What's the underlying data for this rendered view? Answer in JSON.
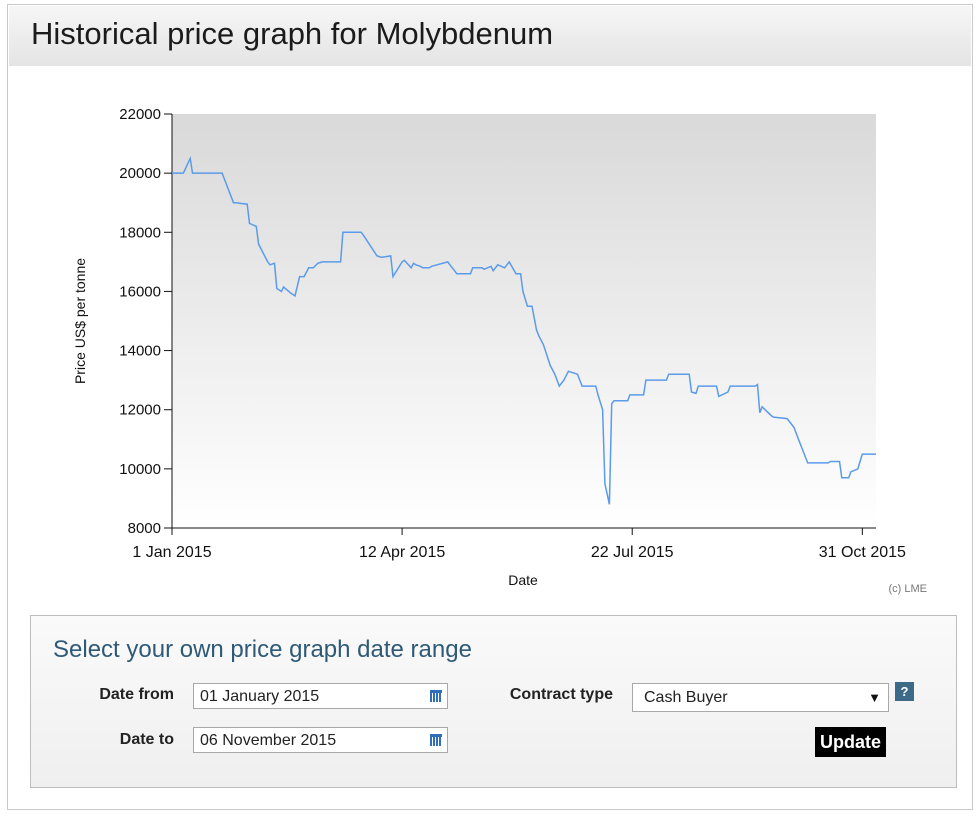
{
  "page": {
    "title": "Historical price graph for Molybdenum"
  },
  "chart_data": {
    "type": "line",
    "title": "",
    "xlabel": "Date",
    "ylabel": "Price US$ per tonne",
    "credit": "(c) LME",
    "x_ticks": [
      "1 Jan 2015",
      "12 Apr 2015",
      "22 Jul 2015",
      "31 Oct 2015"
    ],
    "xlim": [
      "2015-01-01",
      "2015-11-06"
    ],
    "y_ticks": [
      8000,
      10000,
      12000,
      14000,
      16000,
      18000,
      20000,
      22000
    ],
    "ylim": [
      8000,
      22000
    ],
    "grid": false,
    "line_color": "#5b9bea",
    "series": [
      {
        "x": [
          "2015-01-01",
          "2015-01-06",
          "2015-01-09",
          "2015-01-10",
          "2015-01-23",
          "2015-01-24",
          "2015-01-28",
          "2015-01-29",
          "2015-02-03",
          "2015-02-04",
          "2015-02-07",
          "2015-02-08",
          "2015-02-12",
          "2015-02-13",
          "2015-02-15",
          "2015-02-16",
          "2015-02-18",
          "2015-02-19",
          "2015-02-22",
          "2015-02-24",
          "2015-02-26",
          "2015-02-28",
          "2015-03-02",
          "2015-03-04",
          "2015-03-06",
          "2015-03-08",
          "2015-03-16",
          "2015-03-17",
          "2015-03-25",
          "2015-03-26",
          "2015-04-01",
          "2015-04-03",
          "2015-04-07",
          "2015-04-08",
          "2015-04-12",
          "2015-04-13",
          "2015-04-16",
          "2015-04-17",
          "2015-04-18",
          "2015-04-20",
          "2015-04-21",
          "2015-04-24",
          "2015-04-25",
          "2015-05-02",
          "2015-05-05",
          "2015-05-06",
          "2015-05-12",
          "2015-05-13",
          "2015-05-17",
          "2015-05-18",
          "2015-05-21",
          "2015-05-22",
          "2015-05-24",
          "2015-05-27",
          "2015-05-29",
          "2015-06-01",
          "2015-06-03",
          "2015-06-04",
          "2015-06-06",
          "2015-06-08",
          "2015-06-10",
          "2015-06-11",
          "2015-06-13",
          "2015-06-16",
          "2015-06-18",
          "2015-06-20",
          "2015-06-22",
          "2015-06-24",
          "2015-06-28",
          "2015-06-30",
          "2015-07-06",
          "2015-07-07",
          "2015-07-09",
          "2015-07-10",
          "2015-07-12",
          "2015-07-13",
          "2015-07-14",
          "2015-07-20",
          "2015-07-21",
          "2015-07-27",
          "2015-07-28",
          "2015-08-06",
          "2015-08-07",
          "2015-08-16",
          "2015-08-17",
          "2015-08-19",
          "2015-08-20",
          "2015-08-28",
          "2015-08-29",
          "2015-09-02",
          "2015-09-03",
          "2015-09-14",
          "2015-09-15",
          "2015-09-16",
          "2015-09-17",
          "2015-09-21",
          "2015-09-22",
          "2015-09-28",
          "2015-09-29",
          "2015-10-01",
          "2015-10-03",
          "2015-10-05",
          "2015-10-07",
          "2015-10-16",
          "2015-10-17",
          "2015-10-21",
          "2015-10-22",
          "2015-10-25",
          "2015-10-26",
          "2015-10-29",
          "2015-10-31",
          "2015-11-06"
        ],
        "y": [
          20000,
          20000,
          20500,
          20000,
          20000,
          19800,
          19000,
          19000,
          18950,
          18300,
          18200,
          17600,
          17000,
          16900,
          16950,
          16100,
          16000,
          16150,
          15950,
          15850,
          16500,
          16500,
          16800,
          16800,
          16950,
          17000,
          17000,
          18000,
          18000,
          17900,
          17200,
          17150,
          17200,
          16500,
          17000,
          17050,
          16800,
          16950,
          16900,
          16850,
          16800,
          16800,
          16850,
          17000,
          16700,
          16600,
          16600,
          16800,
          16800,
          16750,
          16850,
          16700,
          16900,
          16800,
          17000,
          16600,
          16600,
          16000,
          15500,
          15500,
          14700,
          14500,
          14200,
          13500,
          13200,
          12800,
          13000,
          13300,
          13200,
          12800,
          12800,
          12500,
          12000,
          9500,
          8800,
          12200,
          12300,
          12300,
          12500,
          12500,
          13000,
          13000,
          13200,
          13200,
          12600,
          12550,
          12800,
          12800,
          12450,
          12600,
          12800,
          12800,
          12850,
          11900,
          12100,
          11800,
          11750,
          11700,
          11600,
          11400,
          11000,
          10600,
          10200,
          10200,
          10250,
          10250,
          9700,
          9700,
          9900,
          10000,
          10500,
          10500
        ]
      }
    ]
  },
  "form": {
    "title": "Select your own price graph date range",
    "date_from_label": "Date from",
    "date_from_value": "01 January 2015",
    "date_to_label": "Date to",
    "date_to_value": "06 November 2015",
    "contract_type_label": "Contract type",
    "contract_type_value": "Cash Buyer",
    "help_label": "?",
    "update_label": "Update",
    "calendar_icon": "calendar-icon",
    "dropdown_icon": "chevron-down-icon"
  }
}
